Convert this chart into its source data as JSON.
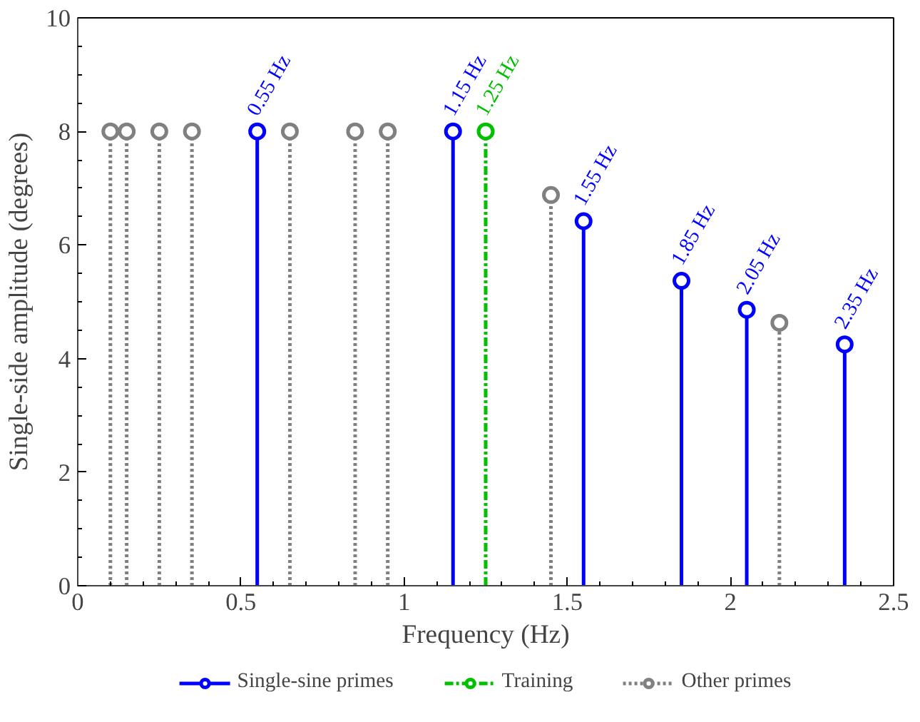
{
  "chart_data": {
    "type": "lollipop",
    "xlabel": "Frequency (Hz)",
    "ylabel": "Single-side amplitude (degrees)",
    "xlim": [
      0,
      2.5
    ],
    "xticks": [
      0,
      0.5,
      1,
      1.5,
      2,
      2.5
    ],
    "ylim": [
      0,
      10
    ],
    "yticks": [
      0,
      2,
      4,
      6,
      8,
      10
    ],
    "grid": false,
    "legend": "bottom",
    "marker": "circle",
    "series": [
      {
        "name": "Single-sine primes",
        "color": "#0000ff",
        "line_style": "solid",
        "x": [
          0.55,
          1.15,
          1.55,
          1.85,
          2.05,
          2.35
        ],
        "values": [
          8,
          8,
          6.42,
          5.37,
          4.86,
          4.25
        ]
      },
      {
        "name": "Training",
        "color": "#00c000",
        "line_style": "dashed",
        "x": [
          1.25
        ],
        "values": [
          8
        ]
      },
      {
        "name": "Other primes",
        "color": "#808080",
        "line_style": "dotted",
        "x": [
          0.1,
          0.15,
          0.25,
          0.35,
          0.65,
          0.85,
          0.95,
          1.45,
          2.15
        ],
        "values": [
          8,
          8,
          8,
          8,
          8,
          8,
          8,
          6.88,
          4.63
        ]
      }
    ],
    "annotations": [
      {
        "text": "0.55 Hz",
        "x": 0.55,
        "y": 8
      },
      {
        "text": "1.15 Hz",
        "x": 1.15,
        "y": 8
      },
      {
        "text": "1.25 Hz",
        "x": 1.25,
        "y": 8
      },
      {
        "text": "1.55 Hz",
        "x": 1.55,
        "y": 6.42
      },
      {
        "text": "1.85 Hz",
        "x": 1.85,
        "y": 5.37
      },
      {
        "text": "2.05 Hz",
        "x": 2.05,
        "y": 4.86
      },
      {
        "text": "2.35 Hz",
        "x": 2.35,
        "y": 4.25
      }
    ]
  }
}
